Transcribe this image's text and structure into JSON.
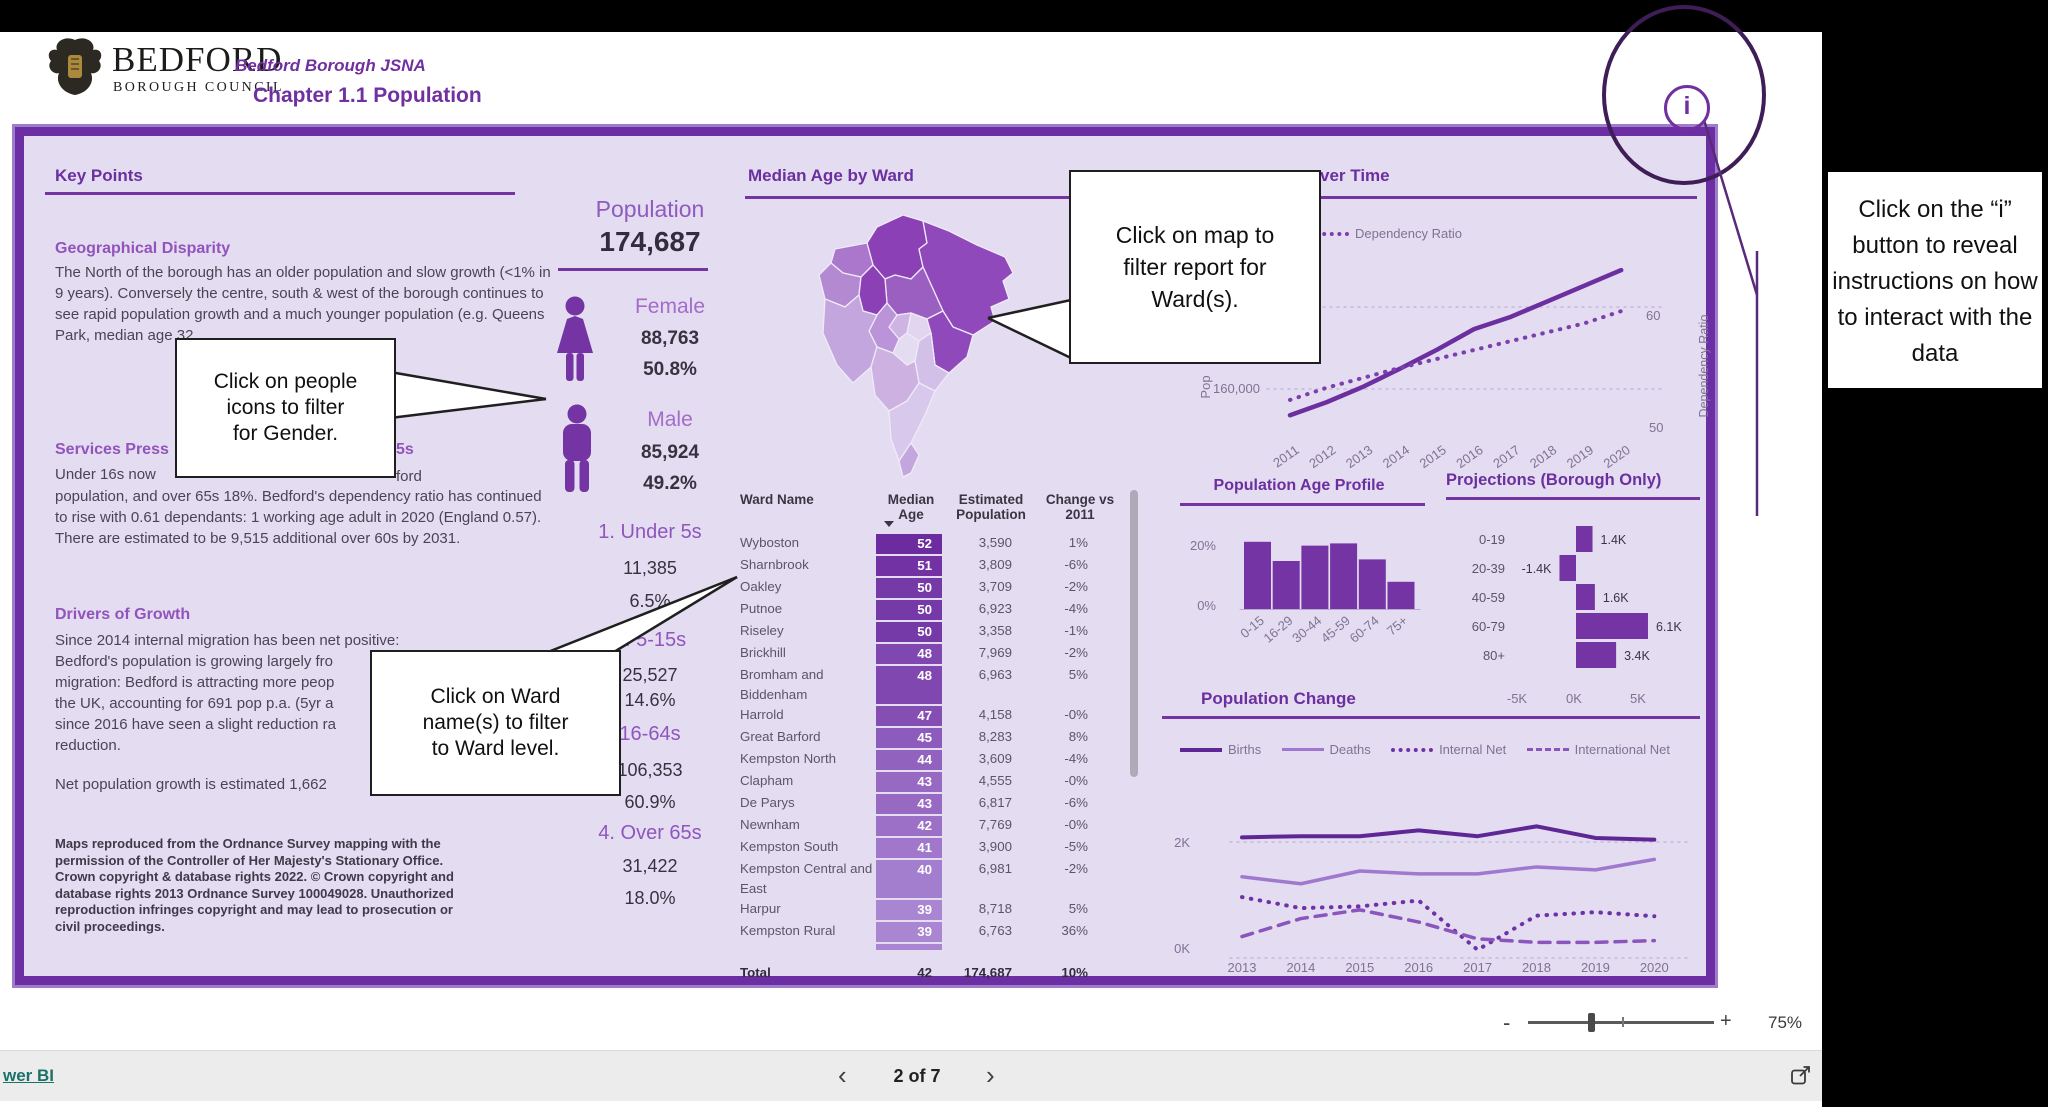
{
  "header": {
    "logo_title": "BEDFORD",
    "logo_subtitle": "BOROUGH COUNCIL",
    "report_name": "Bedford Borough JSNA",
    "chapter_title": "Chapter 1.1 Population",
    "info_button_glyph": "i"
  },
  "annotations": {
    "gender_callout_lines": [
      "Click on people",
      "icons to filter",
      "for Gender."
    ],
    "ward_callout_lines": [
      "Click on Ward",
      "name(s) to filter",
      "to Ward level."
    ],
    "map_callout_lines": [
      "Click on map to",
      "filter report for",
      "Ward(s)."
    ],
    "info_note_lines": [
      "Click on the “i”",
      "button to reveal",
      "instructions on how",
      "to interact with the",
      "data"
    ]
  },
  "key_points": {
    "title": "Key Points",
    "geo_heading": "Geographical Disparity",
    "geo_body": "The North of the borough has an older population and slow growth (<1% in 9 years).  Conversely the centre, south & west of the borough continues to see rapid population growth and a much younger population (e.g. Queens Park, median age 32",
    "services_heading_left": "Services Press",
    "services_heading_right": "5s",
    "services_line1_left": "Under 16s now",
    "services_line1_right": "ford",
    "services_body": "population, and over 65s 18%.  Bedford's dependency ratio has continued to rise with 0.61 dependants: 1 working age adult in 2020 (England 0.57).  There are estimated to be 9,515 additional over 60s by 2031.",
    "drivers_heading": "Drivers of Growth",
    "drivers_lines": [
      "Since 2014 internal migration has been net positive:",
      "Bedford's population is growing largely fro",
      "migration: Bedford is attracting more peop",
      "the UK, accounting for 691 pop p.a. (5yr a",
      "since 2016 have seen a slight reduction ra",
      "reduction."
    ],
    "net_growth_line": "Net population growth is estimated 1,662",
    "copyright": "Maps reproduced from the Ordnance Survey mapping with the permission of the Controller of Her Majesty's Stationary Office.  Crown copyright & database rights 2022.  © Crown copyright and database rights 2013 Ordnance Survey 100049028.  Unauthorized reproduction infringes copyright and may lead to prosecution or civil proceedings."
  },
  "population_panel": {
    "title": "Population",
    "total": "174,687",
    "female_label": "Female",
    "female_count": "88,763",
    "female_pct": "50.8%",
    "male_label": "Male",
    "male_count": "85,924",
    "male_pct": "49.2%",
    "age_groups": [
      {
        "label": "1. Under 5s",
        "count": "11,385",
        "pct": "6.5%"
      },
      {
        "label": "2. 5-15s",
        "count": "25,527",
        "pct": "14.6%"
      },
      {
        "label": "16-64s",
        "count": "106,353",
        "pct": "60.9%"
      },
      {
        "label": "4. Over 65s",
        "count": "31,422",
        "pct": "18.0%"
      }
    ]
  },
  "map_panel": {
    "title": "Median Age by Ward",
    "palette": [
      "#8c40b5",
      "#9049ba",
      "#9a5fc0",
      "#aa77cc",
      "#bb93d8",
      "#c3a6dd",
      "#cdb4e3",
      "#d3c0e8",
      "#e2d5f0"
    ]
  },
  "ward_table": {
    "columns": [
      "Ward Name",
      "Median Age",
      "Estimated Population",
      "Change vs 2011"
    ],
    "rows": [
      {
        "name": "Wyboston",
        "age": 52,
        "pop": "3,590",
        "chg": "1%"
      },
      {
        "name": "Sharnbrook",
        "age": 51,
        "pop": "3,809",
        "chg": "-6%"
      },
      {
        "name": "Oakley",
        "age": 50,
        "pop": "3,709",
        "chg": "-2%"
      },
      {
        "name": "Putnoe",
        "age": 50,
        "pop": "6,923",
        "chg": "-4%"
      },
      {
        "name": "Riseley",
        "age": 50,
        "pop": "3,358",
        "chg": "-1%"
      },
      {
        "name": "Brickhill",
        "age": 48,
        "pop": "7,969",
        "chg": "-2%"
      },
      {
        "name": "Bromham and Biddenham",
        "age": 48,
        "pop": "6,963",
        "chg": "5%"
      },
      {
        "name": "Harrold",
        "age": 47,
        "pop": "4,158",
        "chg": "-0%"
      },
      {
        "name": "Great Barford",
        "age": 45,
        "pop": "8,283",
        "chg": "8%"
      },
      {
        "name": "Kempston North",
        "age": 44,
        "pop": "3,609",
        "chg": "-4%"
      },
      {
        "name": "Clapham",
        "age": 43,
        "pop": "4,555",
        "chg": "-0%"
      },
      {
        "name": "De Parys",
        "age": 43,
        "pop": "6,817",
        "chg": "-6%"
      },
      {
        "name": "Newnham",
        "age": 42,
        "pop": "7,769",
        "chg": "-0%"
      },
      {
        "name": "Kempston South",
        "age": 41,
        "pop": "3,900",
        "chg": "-5%"
      },
      {
        "name": "Kempston Central and East",
        "age": 40,
        "pop": "6,981",
        "chg": "-2%"
      },
      {
        "name": "Harpur",
        "age": 39,
        "pop": "8,718",
        "chg": "5%"
      },
      {
        "name": "Kempston Rural",
        "age": 39,
        "pop": "6,763",
        "chg": "36%"
      }
    ],
    "total": {
      "name": "Total",
      "age": "42",
      "pop": "174,687",
      "chg": "10%"
    }
  },
  "chart_data": [
    {
      "id": "pop_over_time",
      "type": "line",
      "title_fragment": "ver Time",
      "x": [
        2011,
        2012,
        2013,
        2014,
        2015,
        2016,
        2017,
        2018,
        2019,
        2020
      ],
      "series": [
        {
          "name": "Population",
          "values": [
            156.8,
            158.4,
            160.3,
            162.5,
            164.8,
            167.3,
            168.8,
            170.7,
            172.6,
            174.5
          ]
        },
        {
          "name": "Dependency Ratio",
          "values": [
            52.8,
            53.9,
            54.8,
            55.7,
            56.5,
            57.3,
            58.1,
            58.9,
            59.7,
            60.8
          ]
        }
      ],
      "left_tick": "160,000",
      "left_axis_fragment": "Pop",
      "right_axis_label": "Dependency Ratio",
      "right_ticks": [
        "60",
        "50"
      ],
      "legend_visible": [
        "Dependency Ratio"
      ]
    },
    {
      "id": "age_profile",
      "type": "bar",
      "title": "Population Age Profile",
      "categories": [
        "0-15",
        "16-29",
        "30-44",
        "45-59",
        "60-74",
        "75+"
      ],
      "values": [
        21,
        15,
        19.8,
        20.5,
        15.5,
        8.5
      ],
      "yticks": [
        "20%",
        "0%"
      ],
      "ylim": [
        0,
        22
      ]
    },
    {
      "id": "projections",
      "type": "bar-horizontal",
      "title": "Projections (Borough Only)",
      "categories": [
        "0-19",
        "20-39",
        "40-59",
        "60-79",
        "80+"
      ],
      "values": [
        1.4,
        -1.4,
        1.6,
        6.1,
        3.4
      ],
      "labels": [
        "1.4K",
        "-1.4K",
        "1.6K",
        "6.1K",
        "3.4K"
      ],
      "xticks": [
        "-5K",
        "0K",
        "5K"
      ]
    },
    {
      "id": "pop_change",
      "type": "line",
      "title": "Population Change",
      "x": [
        2013,
        2014,
        2015,
        2016,
        2017,
        2018,
        2019,
        2020
      ],
      "series": [
        {
          "name": "Births",
          "values": [
            2.08,
            2.1,
            2.1,
            2.2,
            2.1,
            2.27,
            2.07,
            2.04
          ]
        },
        {
          "name": "Deaths",
          "values": [
            1.4,
            1.28,
            1.5,
            1.45,
            1.45,
            1.57,
            1.52,
            1.7
          ]
        },
        {
          "name": "Internal Net",
          "values": [
            1.05,
            0.86,
            0.89,
            0.99,
            0.14,
            0.73,
            0.79,
            0.72
          ]
        },
        {
          "name": "International Net",
          "values": [
            0.37,
            0.68,
            0.83,
            0.62,
            0.33,
            0.27,
            0.27,
            0.3
          ]
        }
      ],
      "yticks": [
        "2K",
        "0K"
      ]
    }
  ],
  "footer": {
    "link_fragment": "wer BI",
    "nav_prev": "‹",
    "nav_label": "2 of 7",
    "nav_next": "›",
    "zoom_minus": "-",
    "zoom_plus": "+",
    "zoom_level": "75%"
  },
  "colors": {
    "accent": "#7030a0",
    "frame": "#6b2fa3",
    "canvas_bg": "#e4dcf0",
    "pop_line": "#6b2fa0",
    "dep_line": "#7b3fae",
    "births": "#5f2795",
    "deaths": "#a178cf",
    "internal": "#6d32a5",
    "international": "#8a55bd",
    "bars": "#7434a4",
    "age_cell_dark": "#6d2ba0",
    "age_cell_light": "#a985d2",
    "link": "#1b7269",
    "annotation": "#3f1d56"
  }
}
